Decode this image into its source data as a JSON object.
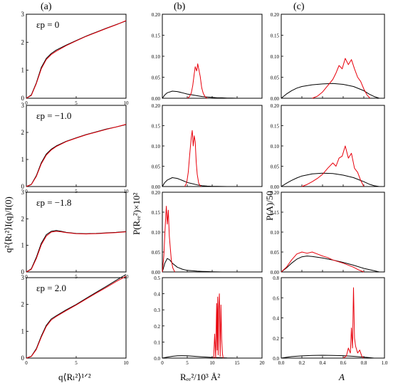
{
  "figure": {
    "panel_letters": [
      "(a)",
      "(b)",
      "(c)"
    ],
    "x_labels": [
      "q⟨Rₗ²⟩¹ᐟ²",
      "Rₑₑ²/10³ Å²",
      "A"
    ],
    "y_labels": [
      "q²⟨Rₗ²⟩I(q)/I(0)",
      "P(Rₑₑ²)×10²",
      "P(A)/50"
    ],
    "row_labels": [
      "εp = 0",
      "εp = −1.0",
      "εp = −1.8",
      "εp = 2.0"
    ],
    "series_colors": {
      "simulation": "#000000",
      "model": "#e8000b"
    }
  },
  "chart_data": [
    {
      "type": "line",
      "panel": "a",
      "row": 0,
      "xlim": [
        0,
        10
      ],
      "ylim": [
        0,
        3
      ],
      "xticks": [
        0,
        5,
        10
      ],
      "yticks": [
        0,
        1,
        2,
        3
      ],
      "series": [
        {
          "x": [
            0,
            0.5,
            1,
            1.5,
            2,
            2.5,
            3,
            4,
            5,
            6,
            7,
            8,
            9,
            10
          ],
          "values": [
            0,
            0.12,
            0.55,
            1.1,
            1.42,
            1.6,
            1.72,
            1.9,
            2.06,
            2.22,
            2.36,
            2.5,
            2.63,
            2.76
          ]
        },
        {
          "x": [
            0,
            0.5,
            1,
            1.5,
            2,
            2.5,
            3,
            4,
            5,
            6,
            7,
            8,
            9,
            10
          ],
          "values": [
            0,
            0.1,
            0.52,
            1.05,
            1.38,
            1.56,
            1.68,
            1.88,
            2.05,
            2.21,
            2.35,
            2.49,
            2.62,
            2.77
          ]
        }
      ]
    },
    {
      "type": "line",
      "panel": "a",
      "row": 1,
      "xlim": [
        0,
        10
      ],
      "ylim": [
        0,
        3
      ],
      "xticks": [
        0,
        5,
        10
      ],
      "yticks": [
        0,
        1,
        2,
        3
      ],
      "series": [
        {
          "x": [
            0,
            0.5,
            1,
            1.5,
            2,
            2.5,
            3,
            4,
            5,
            6,
            7,
            8,
            9,
            10
          ],
          "values": [
            0,
            0.08,
            0.4,
            0.88,
            1.2,
            1.38,
            1.5,
            1.67,
            1.8,
            1.92,
            2.02,
            2.12,
            2.2,
            2.29
          ]
        },
        {
          "x": [
            0,
            0.5,
            1,
            1.5,
            2,
            2.5,
            3,
            4,
            5,
            6,
            7,
            8,
            9,
            10
          ],
          "values": [
            0,
            0.07,
            0.37,
            0.84,
            1.16,
            1.35,
            1.48,
            1.66,
            1.79,
            1.91,
            2.01,
            2.11,
            2.2,
            2.3
          ]
        }
      ]
    },
    {
      "type": "line",
      "panel": "a",
      "row": 2,
      "xlim": [
        0,
        10
      ],
      "ylim": [
        0,
        3
      ],
      "xticks": [
        0,
        5,
        10
      ],
      "yticks": [
        0,
        1,
        2,
        3
      ],
      "series": [
        {
          "x": [
            0,
            0.5,
            1,
            1.5,
            2,
            2.5,
            3,
            3.5,
            4,
            5,
            6,
            7,
            8,
            9,
            10
          ],
          "values": [
            0,
            0.12,
            0.55,
            1.08,
            1.4,
            1.53,
            1.56,
            1.53,
            1.49,
            1.45,
            1.44,
            1.45,
            1.47,
            1.49,
            1.52
          ]
        },
        {
          "x": [
            0,
            0.5,
            1,
            1.5,
            2,
            2.5,
            3,
            3.5,
            4,
            5,
            6,
            7,
            8,
            9,
            10
          ],
          "values": [
            0,
            0.1,
            0.5,
            1.02,
            1.35,
            1.5,
            1.53,
            1.51,
            1.48,
            1.44,
            1.43,
            1.44,
            1.46,
            1.48,
            1.51
          ]
        }
      ]
    },
    {
      "type": "line",
      "panel": "a",
      "row": 3,
      "xlim": [
        0,
        10
      ],
      "ylim": [
        0,
        3
      ],
      "xticks": [
        0,
        5,
        10
      ],
      "yticks": [
        0,
        1,
        2,
        3
      ],
      "series": [
        {
          "x": [
            0,
            0.5,
            1,
            1.5,
            2,
            2.5,
            3,
            4,
            5,
            6,
            7,
            8,
            9,
            10
          ],
          "values": [
            0,
            0.07,
            0.35,
            0.82,
            1.22,
            1.46,
            1.58,
            1.8,
            2.0,
            2.23,
            2.45,
            2.67,
            2.9,
            3.12
          ]
        },
        {
          "x": [
            0,
            0.5,
            1,
            1.5,
            2,
            2.5,
            3,
            4,
            5,
            6,
            7,
            8,
            9,
            10
          ],
          "values": [
            0,
            0.06,
            0.32,
            0.78,
            1.18,
            1.42,
            1.55,
            1.77,
            1.98,
            2.2,
            2.42,
            2.63,
            2.85,
            3.05
          ]
        }
      ]
    },
    {
      "type": "line",
      "panel": "b",
      "row": 0,
      "xlim": [
        0,
        20
      ],
      "ylim": [
        0,
        0.2
      ],
      "xticks": [
        0,
        5,
        10,
        15,
        20
      ],
      "yticks": [
        0,
        0.05,
        0.1,
        0.15,
        0.2
      ],
      "series": [
        {
          "x": [
            0,
            0.5,
            1,
            2,
            3,
            4,
            5,
            6,
            7,
            8,
            9,
            10,
            11,
            12,
            13,
            14,
            15
          ],
          "values": [
            0,
            0.008,
            0.013,
            0.017,
            0.016,
            0.013,
            0.01,
            0.008,
            0.006,
            0.004,
            0.003,
            0.002,
            0.001,
            0.001,
            0.0005,
            0.0003,
            0
          ]
        },
        {
          "x": [
            5,
            5.4,
            5.8,
            6.1,
            6.4,
            6.6,
            6.9,
            7.1,
            7.3,
            7.6,
            7.9,
            8.2,
            8.6,
            9
          ],
          "values": [
            0,
            0.003,
            0.012,
            0.03,
            0.058,
            0.075,
            0.065,
            0.082,
            0.07,
            0.052,
            0.025,
            0.012,
            0.003,
            0
          ]
        }
      ]
    },
    {
      "type": "line",
      "panel": "b",
      "row": 1,
      "xlim": [
        0,
        20
      ],
      "ylim": [
        0,
        0.2
      ],
      "xticks": [
        0,
        5,
        10,
        15,
        20
      ],
      "yticks": [
        0,
        0.05,
        0.1,
        0.15,
        0.2
      ],
      "series": [
        {
          "x": [
            0,
            0.5,
            1,
            2,
            3,
            4,
            5,
            6,
            7,
            8,
            9,
            10,
            11,
            12,
            13
          ],
          "values": [
            0,
            0.01,
            0.016,
            0.022,
            0.02,
            0.015,
            0.01,
            0.007,
            0.004,
            0.002,
            0.001,
            0.0005,
            0.0003,
            0.0001,
            0
          ]
        },
        {
          "x": [
            4.5,
            4.9,
            5.2,
            5.5,
            5.8,
            6,
            6.2,
            6.4,
            6.6,
            6.8,
            7,
            7.3,
            7.7
          ],
          "values": [
            0,
            0.01,
            0.035,
            0.08,
            0.12,
            0.138,
            0.1,
            0.125,
            0.11,
            0.06,
            0.03,
            0.008,
            0
          ]
        }
      ]
    },
    {
      "type": "line",
      "panel": "b",
      "row": 2,
      "xlim": [
        0,
        20
      ],
      "ylim": [
        0,
        0.2
      ],
      "xticks": [
        0,
        5,
        10,
        15,
        20
      ],
      "yticks": [
        0,
        0.05,
        0.1,
        0.15,
        0.2
      ],
      "series": [
        {
          "x": [
            0,
            0.5,
            1,
            1.5,
            2,
            3,
            4,
            5,
            6,
            7,
            8,
            9,
            10,
            11,
            12
          ],
          "values": [
            0,
            0.022,
            0.034,
            0.03,
            0.022,
            0.012,
            0.007,
            0.004,
            0.003,
            0.002,
            0.0015,
            0.001,
            0.0005,
            0.0002,
            0
          ]
        },
        {
          "x": [
            0,
            0.3,
            0.6,
            0.8,
            1,
            1.2,
            1.4,
            1.6,
            1.8,
            2.1,
            2.5
          ],
          "values": [
            0,
            0.04,
            0.12,
            0.165,
            0.12,
            0.155,
            0.09,
            0.06,
            0.03,
            0.01,
            0
          ]
        }
      ]
    },
    {
      "type": "line",
      "panel": "b",
      "row": 3,
      "xlim": [
        0,
        20
      ],
      "ylim": [
        0,
        0.5
      ],
      "xticks": [
        0,
        5,
        10,
        15,
        20
      ],
      "yticks": [
        0,
        0.1,
        0.2,
        0.3,
        0.4,
        0.5
      ],
      "series": [
        {
          "x": [
            0,
            1,
            2,
            3,
            4,
            5,
            6,
            7,
            8,
            9,
            10,
            11,
            12,
            13,
            14,
            15,
            16
          ],
          "values": [
            0,
            0.006,
            0.011,
            0.014,
            0.015,
            0.014,
            0.012,
            0.01,
            0.008,
            0.006,
            0.004,
            0.003,
            0.002,
            0.001,
            0.0005,
            0.0002,
            0
          ]
        },
        {
          "x": [
            10.3,
            10.5,
            10.7,
            10.9,
            11.0,
            11.1,
            11.2,
            11.3,
            11.45,
            11.6,
            11.75,
            11.9,
            12.05,
            12.2
          ],
          "values": [
            0,
            0.15,
            0.0,
            0.34,
            0.05,
            0.38,
            0.02,
            0.3,
            0.4,
            0.01,
            0.33,
            0.12,
            0.03,
            0
          ]
        }
      ]
    },
    {
      "type": "line",
      "panel": "c",
      "row": 0,
      "xlim": [
        0,
        1
      ],
      "ylim": [
        0,
        0.2
      ],
      "xticks": [
        0,
        0.2,
        0.4,
        0.6,
        0.8,
        1
      ],
      "yticks": [
        0,
        0.05,
        0.1,
        0.15,
        0.2
      ],
      "series": [
        {
          "x": [
            0,
            0.05,
            0.1,
            0.15,
            0.2,
            0.3,
            0.4,
            0.5,
            0.6,
            0.7,
            0.8,
            0.85,
            0.9,
            0.95
          ],
          "values": [
            0,
            0.01,
            0.018,
            0.024,
            0.028,
            0.032,
            0.034,
            0.035,
            0.033,
            0.028,
            0.018,
            0.01,
            0.004,
            0
          ]
        },
        {
          "x": [
            0.3,
            0.35,
            0.4,
            0.45,
            0.5,
            0.53,
            0.56,
            0.59,
            0.62,
            0.65,
            0.68,
            0.71,
            0.74,
            0.77,
            0.8,
            0.83,
            0.86
          ],
          "values": [
            0,
            0.005,
            0.015,
            0.03,
            0.045,
            0.06,
            0.078,
            0.07,
            0.095,
            0.08,
            0.092,
            0.07,
            0.05,
            0.04,
            0.022,
            0.008,
            0
          ]
        }
      ]
    },
    {
      "type": "line",
      "panel": "c",
      "row": 1,
      "xlim": [
        0,
        1
      ],
      "ylim": [
        0,
        0.2
      ],
      "xticks": [
        0,
        0.2,
        0.4,
        0.6,
        0.8,
        1
      ],
      "yticks": [
        0,
        0.05,
        0.1,
        0.15,
        0.2
      ],
      "series": [
        {
          "x": [
            0,
            0.05,
            0.1,
            0.15,
            0.2,
            0.3,
            0.4,
            0.5,
            0.6,
            0.7,
            0.8,
            0.85,
            0.9,
            0.95
          ],
          "values": [
            0,
            0.008,
            0.015,
            0.021,
            0.026,
            0.031,
            0.033,
            0.032,
            0.028,
            0.022,
            0.012,
            0.006,
            0.002,
            0
          ]
        },
        {
          "x": [
            0.2,
            0.25,
            0.3,
            0.35,
            0.4,
            0.45,
            0.5,
            0.53,
            0.56,
            0.59,
            0.62,
            0.65,
            0.68,
            0.71,
            0.74,
            0.77,
            0.8
          ],
          "values": [
            0,
            0.005,
            0.012,
            0.02,
            0.03,
            0.045,
            0.058,
            0.05,
            0.07,
            0.075,
            0.1,
            0.07,
            0.082,
            0.045,
            0.035,
            0.015,
            0
          ]
        }
      ]
    },
    {
      "type": "line",
      "panel": "c",
      "row": 2,
      "xlim": [
        0,
        1
      ],
      "ylim": [
        0,
        0.2
      ],
      "xticks": [
        0,
        0.2,
        0.4,
        0.6,
        0.8,
        1
      ],
      "yticks": [
        0,
        0.05,
        0.1,
        0.15,
        0.2
      ],
      "series": [
        {
          "x": [
            0,
            0.05,
            0.1,
            0.15,
            0.2,
            0.25,
            0.3,
            0.4,
            0.5,
            0.6,
            0.7,
            0.8,
            0.9,
            0.95
          ],
          "values": [
            0,
            0.01,
            0.022,
            0.032,
            0.038,
            0.04,
            0.039,
            0.035,
            0.03,
            0.024,
            0.017,
            0.009,
            0.003,
            0
          ]
        },
        {
          "x": [
            0,
            0.05,
            0.1,
            0.15,
            0.2,
            0.25,
            0.3,
            0.35,
            0.4,
            0.45,
            0.5,
            0.6,
            0.7,
            0.75,
            0.8
          ],
          "values": [
            0,
            0.012,
            0.03,
            0.045,
            0.05,
            0.047,
            0.05,
            0.045,
            0.04,
            0.036,
            0.03,
            0.022,
            0.012,
            0.005,
            0
          ]
        }
      ]
    },
    {
      "type": "line",
      "panel": "c",
      "row": 3,
      "xlim": [
        0,
        1
      ],
      "ylim": [
        0,
        0.8
      ],
      "xticks": [
        0,
        0.2,
        0.4,
        0.6,
        0.8,
        1
      ],
      "yticks": [
        0,
        0.2,
        0.4,
        0.6,
        0.8
      ],
      "series": [
        {
          "x": [
            0,
            0.05,
            0.1,
            0.2,
            0.3,
            0.4,
            0.5,
            0.6,
            0.7,
            0.8,
            0.85,
            0.9
          ],
          "values": [
            0,
            0.008,
            0.015,
            0.022,
            0.026,
            0.028,
            0.027,
            0.024,
            0.018,
            0.01,
            0.005,
            0
          ]
        },
        {
          "x": [
            0.6,
            0.63,
            0.65,
            0.67,
            0.68,
            0.69,
            0.7,
            0.71,
            0.72,
            0.74,
            0.76,
            0.78,
            0.8
          ],
          "values": [
            0,
            0.02,
            0.1,
            0.05,
            0.3,
            0.1,
            0.7,
            0.2,
            0.12,
            0.05,
            0.08,
            0.02,
            0
          ]
        }
      ]
    }
  ]
}
